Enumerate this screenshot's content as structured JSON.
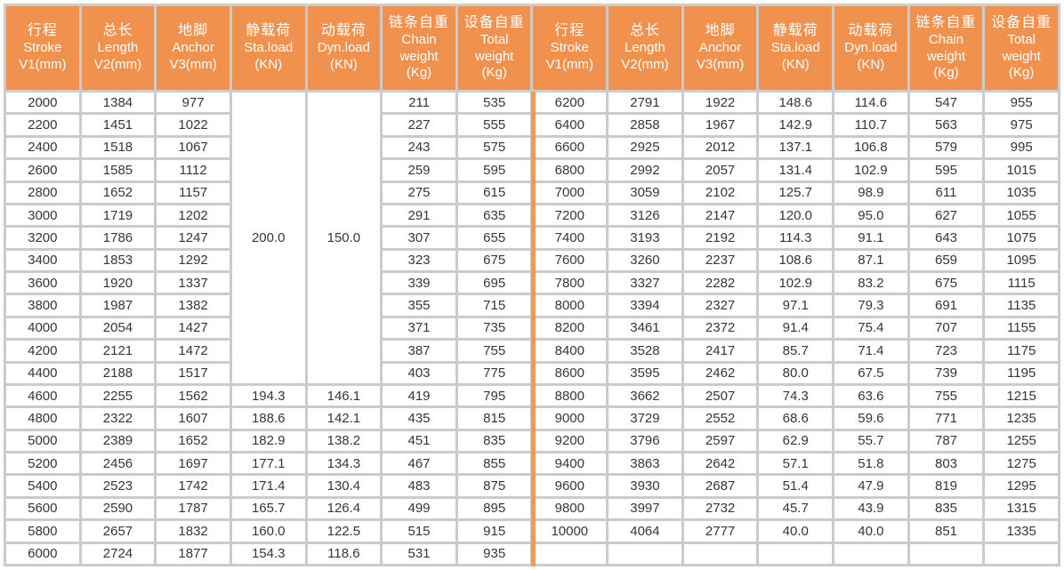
{
  "table": {
    "columns": [
      {
        "key": "stroke",
        "lines": [
          "行程",
          "Stroke",
          "V1(mm)"
        ]
      },
      {
        "key": "length",
        "lines": [
          "总长",
          "Length",
          "V2(mm)"
        ]
      },
      {
        "key": "anchor",
        "lines": [
          "地脚",
          "Anchor",
          "V3(mm)"
        ]
      },
      {
        "key": "sta-load",
        "lines": [
          "静载荷",
          "Sta.load",
          "(KN)"
        ]
      },
      {
        "key": "dyn-load",
        "lines": [
          "动载荷",
          "Dyn.load",
          "(KN)"
        ]
      },
      {
        "key": "chain-weight",
        "lines": [
          "链条自重",
          "Chain",
          "weight",
          "(Kg)"
        ]
      },
      {
        "key": "total-weight",
        "lines": [
          "设备自重",
          "Total",
          "weight",
          "(Kg)"
        ]
      }
    ],
    "left": {
      "merged": {
        "sta": "200.0",
        "dyn": "150.0",
        "span": 13
      },
      "rows": [
        [
          "2000",
          "1384",
          "977",
          null,
          null,
          "211",
          "535"
        ],
        [
          "2200",
          "1451",
          "1022",
          null,
          null,
          "227",
          "555"
        ],
        [
          "2400",
          "1518",
          "1067",
          null,
          null,
          "243",
          "575"
        ],
        [
          "2600",
          "1585",
          "1112",
          null,
          null,
          "259",
          "595"
        ],
        [
          "2800",
          "1652",
          "1157",
          null,
          null,
          "275",
          "615"
        ],
        [
          "3000",
          "1719",
          "1202",
          null,
          null,
          "291",
          "635"
        ],
        [
          "3200",
          "1786",
          "1247",
          null,
          null,
          "307",
          "655"
        ],
        [
          "3400",
          "1853",
          "1292",
          null,
          null,
          "323",
          "675"
        ],
        [
          "3600",
          "1920",
          "1337",
          null,
          null,
          "339",
          "695"
        ],
        [
          "3800",
          "1987",
          "1382",
          null,
          null,
          "355",
          "715"
        ],
        [
          "4000",
          "2054",
          "1427",
          null,
          null,
          "371",
          "735"
        ],
        [
          "4200",
          "2121",
          "1472",
          null,
          null,
          "387",
          "755"
        ],
        [
          "4400",
          "2188",
          "1517",
          null,
          null,
          "403",
          "775"
        ],
        [
          "4600",
          "2255",
          "1562",
          "194.3",
          "146.1",
          "419",
          "795"
        ],
        [
          "4800",
          "2322",
          "1607",
          "188.6",
          "142.1",
          "435",
          "815"
        ],
        [
          "5000",
          "2389",
          "1652",
          "182.9",
          "138.2",
          "451",
          "835"
        ],
        [
          "5200",
          "2456",
          "1697",
          "177.1",
          "134.3",
          "467",
          "855"
        ],
        [
          "5400",
          "2523",
          "1742",
          "171.4",
          "130.4",
          "483",
          "875"
        ],
        [
          "5600",
          "2590",
          "1787",
          "165.7",
          "126.4",
          "499",
          "895"
        ],
        [
          "5800",
          "2657",
          "1832",
          "160.0",
          "122.5",
          "515",
          "915"
        ],
        [
          "6000",
          "2724",
          "1877",
          "154.3",
          "118.6",
          "531",
          "935"
        ]
      ]
    },
    "right": {
      "rows": [
        [
          "6200",
          "2791",
          "1922",
          "148.6",
          "114.6",
          "547",
          "955"
        ],
        [
          "6400",
          "2858",
          "1967",
          "142.9",
          "110.7",
          "563",
          "975"
        ],
        [
          "6600",
          "2925",
          "2012",
          "137.1",
          "106.8",
          "579",
          "995"
        ],
        [
          "6800",
          "2992",
          "2057",
          "131.4",
          "102.9",
          "595",
          "1015"
        ],
        [
          "7000",
          "3059",
          "2102",
          "125.7",
          "98.9",
          "611",
          "1035"
        ],
        [
          "7200",
          "3126",
          "2147",
          "120.0",
          "95.0",
          "627",
          "1055"
        ],
        [
          "7400",
          "3193",
          "2192",
          "114.3",
          "91.1",
          "643",
          "1075"
        ],
        [
          "7600",
          "3260",
          "2237",
          "108.6",
          "87.1",
          "659",
          "1095"
        ],
        [
          "7800",
          "3327",
          "2282",
          "102.9",
          "83.2",
          "675",
          "1115"
        ],
        [
          "8000",
          "3394",
          "2327",
          "97.1",
          "79.3",
          "691",
          "1135"
        ],
        [
          "8200",
          "3461",
          "2372",
          "91.4",
          "75.4",
          "707",
          "1155"
        ],
        [
          "8400",
          "3528",
          "2417",
          "85.7",
          "71.4",
          "723",
          "1175"
        ],
        [
          "8600",
          "3595",
          "2462",
          "80.0",
          "67.5",
          "739",
          "1195"
        ],
        [
          "8800",
          "3662",
          "2507",
          "74.3",
          "63.6",
          "755",
          "1215"
        ],
        [
          "9000",
          "3729",
          "2552",
          "68.6",
          "59.6",
          "771",
          "1235"
        ],
        [
          "9200",
          "3796",
          "2597",
          "62.9",
          "55.7",
          "787",
          "1255"
        ],
        [
          "9400",
          "3863",
          "2642",
          "57.1",
          "51.8",
          "803",
          "1275"
        ],
        [
          "9600",
          "3930",
          "2687",
          "51.4",
          "47.9",
          "819",
          "1295"
        ],
        [
          "9800",
          "3997",
          "2732",
          "45.7",
          "43.9",
          "835",
          "1315"
        ],
        [
          "10000",
          "4064",
          "2777",
          "40.0",
          "40.0",
          "851",
          "1335"
        ],
        [
          "",
          "",
          "",
          "",
          "",
          "",
          ""
        ]
      ]
    },
    "colors": {
      "header_bg": "#f0914e",
      "divider": "#f59a4c",
      "grid": "#cbcbcb",
      "text": "#3b3335",
      "header_text": "#ffffff"
    }
  }
}
